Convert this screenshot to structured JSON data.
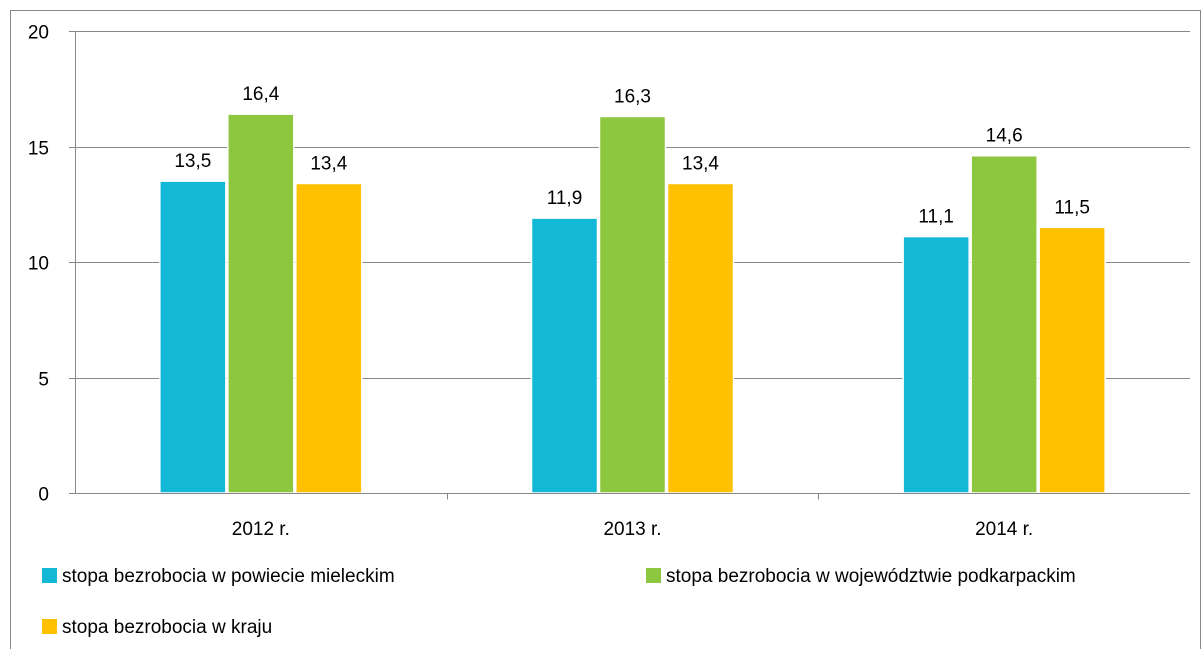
{
  "chart_data": {
    "type": "bar",
    "categories": [
      "2012 r.",
      "2013 r.",
      "2014 r."
    ],
    "series": [
      {
        "name": "stopa bezrobocia w powiecie mieleckim",
        "color": "#12B8D6",
        "values": [
          13.5,
          11.9,
          11.1
        ],
        "labels": [
          "13,5",
          "11,9",
          "11,1"
        ]
      },
      {
        "name": "stopa bezrobocia w województwie podkarpackim",
        "color": "#8DC63F",
        "values": [
          16.4,
          16.3,
          14.6
        ],
        "labels": [
          "16,4",
          "16,3",
          "14,6"
        ]
      },
      {
        "name": "stopa bezrobocia w kraju",
        "color": "#FFC000",
        "values": [
          13.4,
          13.4,
          11.5
        ],
        "labels": [
          "13,4",
          "13,4",
          "11,5"
        ]
      }
    ],
    "ylim": [
      0,
      20
    ],
    "yticks": [
      "0",
      "5",
      "10",
      "15",
      "20"
    ],
    "grid": true,
    "legend_position": "bottom"
  }
}
